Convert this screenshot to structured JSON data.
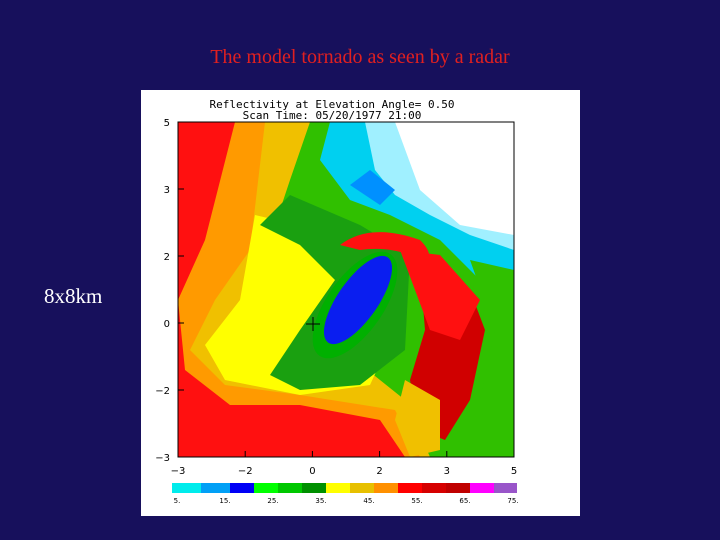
{
  "slide": {
    "title": "The model tornado as seen by a radar",
    "side_label": "8x8km"
  },
  "figure": {
    "title": "Reflectivity at Elevation Angle= 0.50",
    "subtitle": "Scan Time: 05/20/1977 21:00",
    "x_tick_labels": [
      "−3",
      "−2",
      "0",
      "2",
      "3",
      "5"
    ],
    "y_tick_labels": [
      "5",
      "3",
      "2",
      "0",
      "−2",
      "−3"
    ],
    "colorbar_labels": [
      "5.",
      "15.",
      "25.",
      "35.",
      "45.",
      "55.",
      "65.",
      "75."
    ]
  }
}
